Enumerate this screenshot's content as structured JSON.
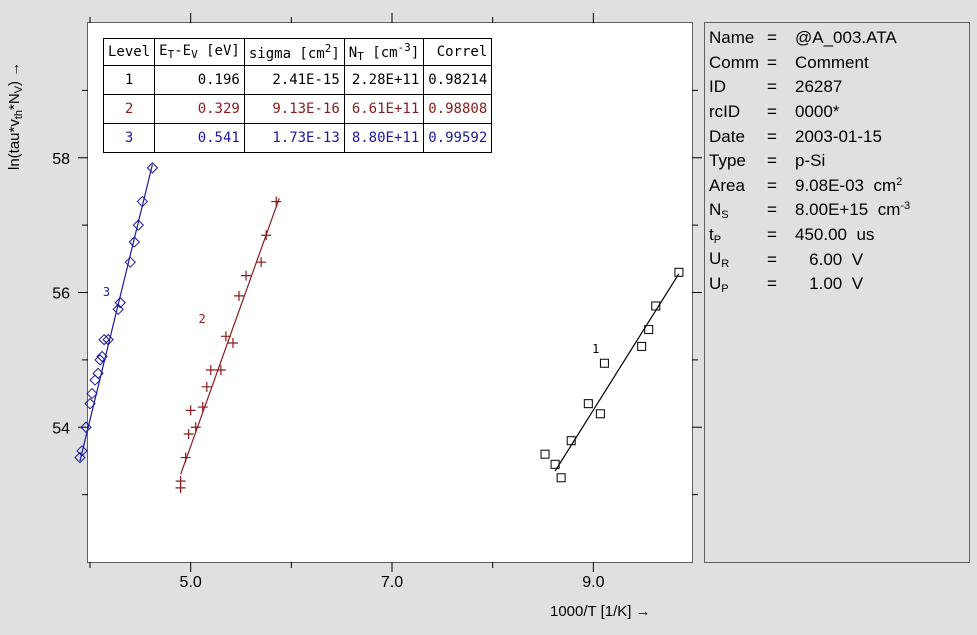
{
  "chart_data": {
    "type": "scatter",
    "title": "",
    "xlabel": {
      "text": "1000/T  [1/K]",
      "arrow": "→"
    },
    "ylabel": {
      "text": "ln(tau*v",
      "sub1": "th",
      "mid": "*N",
      "sub2": "V",
      "end": ")",
      "arrow": "→"
    },
    "xlim": [
      3.98,
      9.98
    ],
    "ylim": [
      52.0,
      60.0
    ],
    "xticks": [
      5.0,
      7.0,
      9.0
    ],
    "xtick_labels": [
      "5.0",
      "7.0",
      "9.0"
    ],
    "yticks": [
      54,
      56,
      58
    ],
    "ytick_labels": [
      "54",
      "56",
      "58"
    ],
    "grid": false,
    "series": [
      {
        "name": "1",
        "color": "#000000",
        "marker": "square",
        "points": [
          [
            8.52,
            53.6
          ],
          [
            8.62,
            53.45
          ],
          [
            8.68,
            53.25
          ],
          [
            8.78,
            53.8
          ],
          [
            8.95,
            54.35
          ],
          [
            9.07,
            54.2
          ],
          [
            9.11,
            54.95
          ],
          [
            9.48,
            55.2
          ],
          [
            9.55,
            55.45
          ],
          [
            9.62,
            55.8
          ],
          [
            9.85,
            56.3
          ]
        ],
        "fit": [
          [
            8.62,
            53.35
          ],
          [
            9.85,
            56.28
          ]
        ],
        "label_at": [
          9.06,
          55.1
        ]
      },
      {
        "name": "2",
        "color": "#8b1a1a",
        "marker": "plus",
        "points": [
          [
            4.9,
            53.1
          ],
          [
            4.9,
            53.2
          ],
          [
            4.95,
            53.55
          ],
          [
            4.98,
            53.9
          ],
          [
            5.0,
            54.25
          ],
          [
            5.05,
            54.0
          ],
          [
            5.12,
            54.3
          ],
          [
            5.16,
            54.6
          ],
          [
            5.2,
            54.85
          ],
          [
            5.3,
            54.85
          ],
          [
            5.35,
            55.35
          ],
          [
            5.42,
            55.25
          ],
          [
            5.48,
            55.95
          ],
          [
            5.55,
            56.25
          ],
          [
            5.7,
            56.45
          ],
          [
            5.75,
            56.85
          ],
          [
            5.85,
            57.35
          ]
        ],
        "fit": [
          [
            4.9,
            53.3
          ],
          [
            5.88,
            57.4
          ]
        ],
        "label_at": [
          5.15,
          55.55
        ]
      },
      {
        "name": "3",
        "color": "#1a1a99",
        "marker": "diamond",
        "points": [
          [
            3.9,
            53.55
          ],
          [
            3.92,
            53.65
          ],
          [
            3.96,
            54.0
          ],
          [
            4.0,
            54.35
          ],
          [
            4.02,
            54.5
          ],
          [
            4.05,
            54.7
          ],
          [
            4.08,
            54.8
          ],
          [
            4.1,
            55.0
          ],
          [
            4.12,
            55.05
          ],
          [
            4.14,
            55.3
          ],
          [
            4.18,
            55.3
          ],
          [
            4.28,
            55.75
          ],
          [
            4.3,
            55.85
          ],
          [
            4.4,
            56.45
          ],
          [
            4.44,
            56.75
          ],
          [
            4.48,
            57.0
          ],
          [
            4.52,
            57.35
          ],
          [
            4.62,
            57.85
          ]
        ],
        "fit": [
          [
            3.9,
            53.5
          ],
          [
            4.62,
            57.9
          ]
        ],
        "label_at": [
          4.2,
          55.95
        ]
      }
    ],
    "table": {
      "headers": [
        {
          "main": "Level"
        },
        {
          "pre": "E",
          "sub": "T",
          "mid": "-E",
          "sub2": "V",
          "post": " [eV]"
        },
        {
          "pre": "sigma [cm",
          "sup": "2",
          "post": "]"
        },
        {
          "pre": "N",
          "sub": "T",
          "mid": "  [cm",
          "sup": "-3",
          "post": "]"
        },
        {
          "main": "Correl"
        }
      ],
      "rows": [
        {
          "level": "1",
          "et_ev": "0.196",
          "sigma": "2.41E-15",
          "nt": "2.28E+11",
          "correl": "0.98214",
          "color": "#000000"
        },
        {
          "level": "2",
          "et_ev": "0.329",
          "sigma": "9.13E-16",
          "nt": "6.61E+11",
          "correl": "0.98808",
          "color": "#8b1a1a"
        },
        {
          "level": "3",
          "et_ev": "0.541",
          "sigma": "1.73E-13",
          "nt": "8.80E+11",
          "correl": "0.99592",
          "color": "#1a1a99"
        }
      ]
    }
  },
  "info": {
    "rows": [
      {
        "key": "Name",
        "sub": "",
        "eq": "=",
        "value": "@A_003.ATA"
      },
      {
        "key": "Comm",
        "sub": "",
        "eq": "=",
        "value": "Comment"
      },
      {
        "key": "ID",
        "sub": "",
        "eq": "=",
        "value": "26287"
      },
      {
        "key": "rcID",
        "sub": "",
        "eq": "=",
        "value": "0000*"
      },
      {
        "key": "Date",
        "sub": "",
        "eq": "=",
        "value": "2003-01-15"
      },
      {
        "key": "Type",
        "sub": "",
        "eq": "=",
        "value": "p-Si"
      },
      {
        "key": "Area",
        "sub": "",
        "eq": "=",
        "value": "9.08E-03  cm",
        "sup": "2"
      },
      {
        "key": "N",
        "sub": "S",
        "eq": "=",
        "value": "8.00E+15  cm",
        "sup": "-3"
      },
      {
        "key": "t",
        "sub": "P",
        "eq": "=",
        "value": "450.00  us"
      },
      {
        "key": "U",
        "sub": "R",
        "eq": "=",
        "value": "   6.00  V"
      },
      {
        "key": "U",
        "sub": "P",
        "eq": "=",
        "value": "   1.00  V"
      }
    ]
  }
}
